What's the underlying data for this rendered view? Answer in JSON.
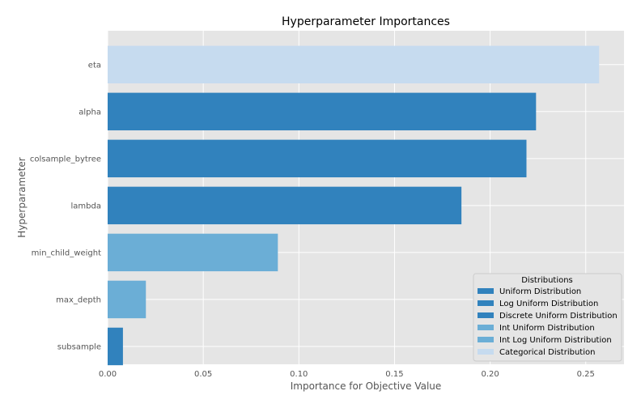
{
  "chart_data": {
    "type": "bar",
    "orientation": "horizontal",
    "title": "Hyperparameter Importances",
    "xlabel": "Importance for Objective Value",
    "ylabel": "Hyperparameter",
    "xlim": [
      0,
      0.27
    ],
    "xticks": [
      0.0,
      0.05,
      0.1,
      0.15,
      0.2,
      0.25
    ],
    "xtick_labels": [
      "0.00",
      "0.05",
      "0.10",
      "0.15",
      "0.20",
      "0.25"
    ],
    "grid": true,
    "categories": [
      "eta",
      "alpha",
      "colsample_bytree",
      "lambda",
      "min_child_weight",
      "max_depth",
      "subsample"
    ],
    "values": [
      0.257,
      0.224,
      0.219,
      0.185,
      0.089,
      0.02,
      0.008
    ],
    "bar_distributions": [
      "Categorical Distribution",
      "Uniform Distribution",
      "Uniform Distribution",
      "Uniform Distribution",
      "Int Uniform Distribution",
      "Int Uniform Distribution",
      "Uniform Distribution"
    ],
    "legend": {
      "title": "Distributions",
      "placement": "lower-right",
      "entries": [
        {
          "label": "Uniform Distribution",
          "color": "#3182bd"
        },
        {
          "label": "Log Uniform Distribution",
          "color": "#3182bd"
        },
        {
          "label": "Discrete Uniform Distribution",
          "color": "#3182bd"
        },
        {
          "label": "Int Uniform Distribution",
          "color": "#6baed6"
        },
        {
          "label": "Int Log Uniform Distribution",
          "color": "#6baed6"
        },
        {
          "label": "Categorical Distribution",
          "color": "#c6dbef"
        }
      ]
    },
    "colors": {
      "background": "#e5e5e5",
      "grid": "#ffffff",
      "uniform": "#3182bd",
      "int_uniform": "#6baed6",
      "categorical": "#c6dbef"
    }
  }
}
